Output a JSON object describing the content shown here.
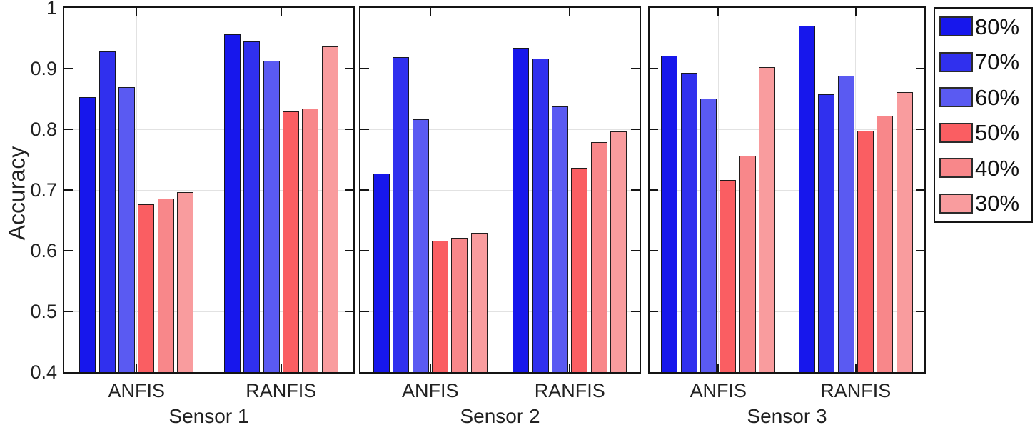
{
  "figure": {
    "background": "#ffffff",
    "axis_color": "#141414",
    "grid_color": "#e2e2e2",
    "text_color": "#212121"
  },
  "chart_data": {
    "type": "bar",
    "title": "",
    "ylabel": "Accuracy",
    "xlabel": "",
    "ylim": [
      0.4,
      1.0
    ],
    "ytick_values": [
      1,
      0.9,
      0.8,
      0.7,
      0.6,
      0.5,
      0.4
    ],
    "ytick_labels": [
      "1",
      "0.9",
      "0.8",
      "0.7",
      "0.6",
      "0.5",
      "0.4"
    ],
    "grid": "horizontal gridlines at 0.5-0.9, vertical gridline at each group center, ticks inward",
    "legend_position": "outside-right-top",
    "series": [
      {
        "name": "80%",
        "color": "#1717ec"
      },
      {
        "name": "70%",
        "color": "#3030ee"
      },
      {
        "name": "60%",
        "color": "#5a5af2"
      },
      {
        "name": "50%",
        "color": "#fa5e62"
      },
      {
        "name": "40%",
        "color": "#f8878a"
      },
      {
        "name": "30%",
        "color": "#f99c9e"
      }
    ],
    "panels": [
      {
        "label": "Sensor 1",
        "groups": [
          {
            "label": "ANFIS",
            "values": [
              0.853,
              0.928,
              0.87,
              0.676,
              0.686,
              0.697
            ]
          },
          {
            "label": "RANFIS",
            "values": [
              0.957,
              0.945,
              0.913,
              0.83,
              0.834,
              0.937
            ]
          }
        ]
      },
      {
        "label": "Sensor 2",
        "groups": [
          {
            "label": "ANFIS",
            "values": [
              0.727,
              0.919,
              0.816,
              0.617,
              0.621,
              0.629
            ]
          },
          {
            "label": "RANFIS",
            "values": [
              0.934,
              0.916,
              0.838,
              0.736,
              0.779,
              0.797
            ]
          }
        ]
      },
      {
        "label": "Sensor 3",
        "groups": [
          {
            "label": "ANFIS",
            "values": [
              0.921,
              0.893,
              0.851,
              0.717,
              0.756,
              0.902
            ]
          },
          {
            "label": "RANFIS",
            "values": [
              0.971,
              0.858,
              0.888,
              0.798,
              0.822,
              0.861
            ]
          }
        ]
      }
    ]
  }
}
